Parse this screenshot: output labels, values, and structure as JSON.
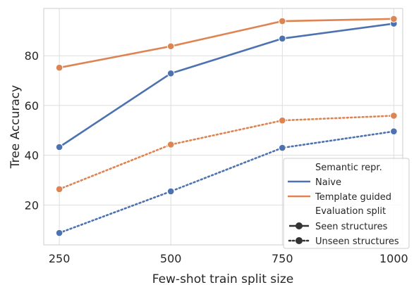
{
  "chart_data": {
    "type": "line",
    "title": "",
    "xlabel": "Few-shot train split size",
    "ylabel": "Tree Accuracy",
    "x": [
      250,
      500,
      750,
      1000
    ],
    "xticks": [
      "250",
      "500",
      "750",
      "1000"
    ],
    "yticks": [
      "20",
      "40",
      "60",
      "80"
    ],
    "xlim": [
      215,
      1020
    ],
    "ylim": [
      4,
      99
    ],
    "grid": true,
    "legend_position": "bottom-right",
    "legend": {
      "hue_title": "Semantic repr.",
      "hue_entries": [
        "Naive",
        "Template guided"
      ],
      "style_title": "Evaluation split",
      "style_entries": [
        "Seen structures",
        "Unseen structures"
      ]
    },
    "series": [
      {
        "semantic": "Naive",
        "split": "Seen structures",
        "color": "#4c72b0",
        "dash": "solid",
        "values": [
          43.3,
          72.9,
          86.9,
          92.9
        ]
      },
      {
        "semantic": "Template guided",
        "split": "Seen structures",
        "color": "#dd8452",
        "dash": "solid",
        "values": [
          75.2,
          83.8,
          93.9,
          94.8
        ]
      },
      {
        "semantic": "Template guided",
        "split": "Unseen structures",
        "color": "#dd8452",
        "dash": "dotted",
        "values": [
          26.4,
          44.3,
          54.0,
          55.9
        ]
      },
      {
        "semantic": "Naive",
        "split": "Unseen structures",
        "color": "#4c72b0",
        "dash": "dotted",
        "values": [
          8.8,
          25.5,
          43.0,
          49.6
        ]
      }
    ]
  }
}
